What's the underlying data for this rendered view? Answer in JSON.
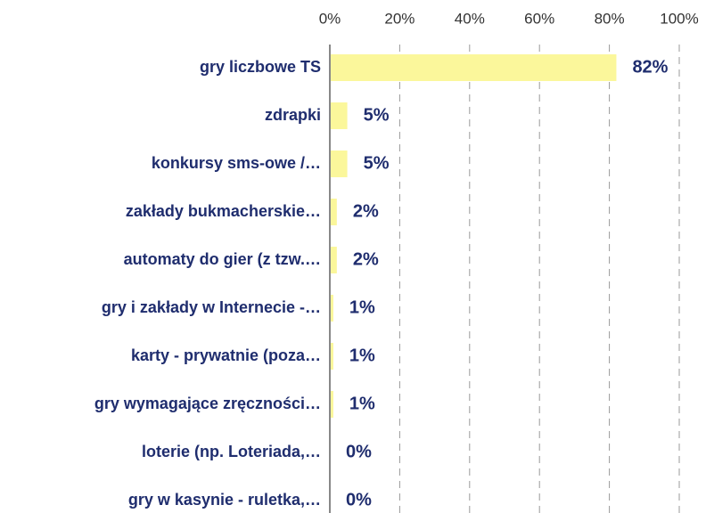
{
  "chart_data": {
    "type": "hbar",
    "categories": [
      "gry liczbowe TS",
      "zdrapki",
      "konkursy sms-owe /…",
      "zakłady bukmacherskie…",
      "automaty do gier (z tzw.…",
      "gry i zakłady w Internecie -…",
      "karty - prywatnie (poza…",
      "gry wymagające zręczności…",
      "loterie (np. Loteriada,…",
      "gry w kasynie - ruletka,…"
    ],
    "values": [
      82,
      5,
      5,
      2,
      2,
      1,
      1,
      1,
      0,
      0
    ],
    "value_labels": [
      "82%",
      "5%",
      "5%",
      "2%",
      "2%",
      "1%",
      "1%",
      "1%",
      "0%",
      "0%"
    ],
    "color": "#fbf79b",
    "xlim": [
      0,
      100
    ],
    "xticks": [
      {
        "value": 0,
        "label": "0%"
      },
      {
        "value": 20,
        "label": "20%"
      },
      {
        "value": 40,
        "label": "40%"
      },
      {
        "value": 60,
        "label": "60%"
      },
      {
        "value": 80,
        "label": "80%"
      },
      {
        "value": 100,
        "label": "100%"
      }
    ],
    "grid": true
  }
}
